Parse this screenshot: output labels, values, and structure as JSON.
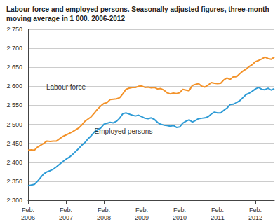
{
  "chart_data": {
    "type": "line",
    "title": "Labour force and employed persons. Seasonally adjusted figures, three-month moving average in 1 000. 2006-2012",
    "categories": [
      "Feb.\n2006",
      null,
      null,
      null,
      null,
      null,
      null,
      null,
      null,
      null,
      null,
      null,
      "Feb.\n2007",
      null,
      null,
      null,
      null,
      null,
      null,
      null,
      null,
      null,
      null,
      null,
      "Feb.\n2008",
      null,
      null,
      null,
      null,
      null,
      null,
      null,
      null,
      null,
      null,
      null,
      "Feb.\n2009",
      null,
      null,
      null,
      null,
      null,
      null,
      null,
      null,
      null,
      null,
      null,
      "Feb.\n2010",
      null,
      null,
      null,
      null,
      null,
      null,
      null,
      null,
      null,
      null,
      null,
      "Feb.\n2011",
      null,
      null,
      null,
      null,
      null,
      null,
      null,
      null,
      null,
      null,
      null,
      "Feb.\n2012",
      null,
      null,
      null,
      null,
      null,
      null
    ],
    "series": [
      {
        "name": "Labour force",
        "color": "#f39229",
        "values": [
          2432,
          2433,
          2432,
          2440,
          2445,
          2450,
          2456,
          2455,
          2456,
          2456,
          2462,
          2468,
          2472,
          2476,
          2480,
          2485,
          2490,
          2498,
          2508,
          2514,
          2520,
          2530,
          2540,
          2548,
          2555,
          2557,
          2565,
          2566,
          2567,
          2570,
          2580,
          2592,
          2595,
          2597,
          2597,
          2600,
          2601,
          2597,
          2598,
          2596,
          2597,
          2593,
          2594,
          2590,
          2583,
          2580,
          2582,
          2581,
          2583,
          2592,
          2590,
          2588,
          2602,
          2605,
          2607,
          2600,
          2598,
          2603,
          2610,
          2608,
          2607,
          2608,
          2617,
          2622,
          2618,
          2625,
          2625,
          2633,
          2640,
          2645,
          2652,
          2657,
          2665,
          2668,
          2672,
          2677,
          2673,
          2671,
          2677
        ]
      },
      {
        "name": "Employed persons",
        "color": "#2e9bd6",
        "values": [
          2338,
          2340,
          2342,
          2350,
          2360,
          2370,
          2375,
          2378,
          2382,
          2388,
          2395,
          2402,
          2408,
          2413,
          2420,
          2428,
          2436,
          2445,
          2452,
          2462,
          2470,
          2480,
          2486,
          2490,
          2500,
          2503,
          2505,
          2504,
          2508,
          2516,
          2528,
          2530,
          2527,
          2524,
          2522,
          2524,
          2520,
          2516,
          2515,
          2517,
          2513,
          2505,
          2500,
          2498,
          2497,
          2495,
          2497,
          2492,
          2493,
          2503,
          2508,
          2512,
          2506,
          2510,
          2515,
          2516,
          2517,
          2520,
          2527,
          2532,
          2530,
          2530,
          2537,
          2543,
          2552,
          2553,
          2557,
          2562,
          2570,
          2578,
          2582,
          2587,
          2593,
          2597,
          2592,
          2591,
          2595,
          2590,
          2594
        ]
      }
    ],
    "ylim": [
      2300,
      2750
    ],
    "yticks": [
      {
        "value": 2300,
        "label": "2 300"
      },
      {
        "value": 2350,
        "label": "2 350"
      },
      {
        "value": 2400,
        "label": "2 400"
      },
      {
        "value": 2450,
        "label": "2 450"
      },
      {
        "value": 2500,
        "label": "2 500"
      },
      {
        "value": 2550,
        "label": "2 550"
      },
      {
        "value": 2600,
        "label": "2 600"
      },
      {
        "value": 2650,
        "label": "2 650"
      },
      {
        "value": 2700,
        "label": "2 700"
      },
      {
        "value": 2750,
        "label": "2 750"
      }
    ],
    "grid": true
  }
}
